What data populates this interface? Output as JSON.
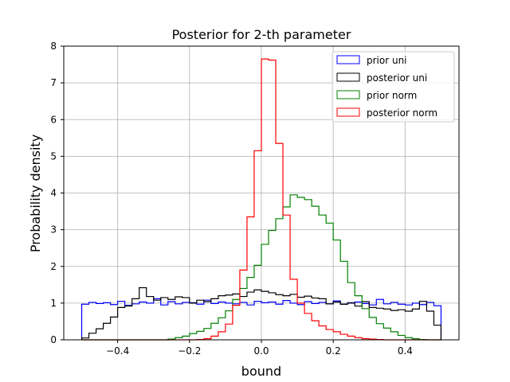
{
  "chart_data": {
    "type": "histogram-step",
    "title": "Posterior for 2-th parameter",
    "xlabel": "bound",
    "ylabel": "Probability density",
    "xlim": [
      -0.55,
      0.55
    ],
    "ylim": [
      0,
      8
    ],
    "xticks": [
      -0.4,
      -0.2,
      0.0,
      0.2,
      0.4
    ],
    "xtick_labels": [
      "−0.4",
      "−0.2",
      "0.0",
      "0.2",
      "0.4"
    ],
    "yticks": [
      0,
      1,
      2,
      3,
      4,
      5,
      6,
      7,
      8
    ],
    "ytick_labels": [
      "0",
      "1",
      "2",
      "3",
      "4",
      "5",
      "6",
      "7",
      "8"
    ],
    "grid": true,
    "legend_position": "top-right",
    "bin_start": -0.5,
    "bin_width": 0.02,
    "series": [
      {
        "name": "prior uni",
        "color": "#0000ff",
        "values": [
          0.97,
          1.02,
          0.99,
          1.01,
          0.96,
          1.05,
          0.94,
          0.98,
          1.03,
          1.0,
          1.12,
          0.95,
          1.04,
          0.98,
          1.02,
          1.01,
          0.97,
          1.08,
          0.99,
          1.03,
          1.0,
          0.98,
          1.02,
          0.95,
          1.05,
          1.01,
          1.03,
          0.97,
          1.07,
          1.0,
          0.96,
          1.04,
          0.99,
          1.02,
          0.98,
          1.06,
          0.97,
          1.01,
          1.03,
          0.99,
          0.95,
          1.1,
          0.98,
          1.02,
          0.97,
          0.95,
          1.0,
          0.96,
          1.02,
          0.93
        ]
      },
      {
        "name": "posterior uni",
        "color": "#000000",
        "values": [
          0.05,
          0.18,
          0.3,
          0.45,
          0.62,
          0.88,
          0.92,
          1.12,
          1.42,
          1.18,
          1.08,
          1.15,
          1.1,
          1.17,
          1.15,
          1.0,
          1.08,
          1.04,
          1.12,
          1.2,
          1.22,
          1.25,
          1.18,
          1.3,
          1.36,
          1.32,
          1.28,
          1.23,
          1.2,
          1.24,
          1.16,
          1.19,
          1.14,
          1.12,
          0.98,
          1.03,
          0.97,
          1.0,
          0.92,
          1.04,
          0.88,
          0.86,
          0.84,
          0.8,
          0.82,
          0.78,
          0.84,
          1.05,
          0.78,
          0.4
        ]
      },
      {
        "name": "prior norm",
        "color": "#008000",
        "values": [
          0,
          0,
          0,
          0,
          0,
          0,
          0,
          0,
          0,
          0,
          0,
          0,
          0.02,
          0.06,
          0.1,
          0.17,
          0.23,
          0.31,
          0.45,
          0.6,
          0.79,
          1.1,
          1.4,
          1.7,
          2.03,
          2.6,
          2.98,
          3.3,
          3.62,
          3.95,
          3.88,
          3.82,
          3.64,
          3.4,
          3.18,
          2.72,
          2.14,
          1.56,
          1.2,
          0.85,
          0.61,
          0.44,
          0.32,
          0.22,
          0.12,
          0.06,
          0.03,
          0.01,
          0,
          0
        ]
      },
      {
        "name": "posterior norm",
        "color": "#ff0000",
        "values": [
          0,
          0,
          0,
          0,
          0,
          0,
          0,
          0,
          0,
          0,
          0,
          0,
          0,
          0,
          0,
          0,
          0.01,
          0.03,
          0.1,
          0.22,
          0.43,
          0.94,
          1.9,
          3.35,
          5.15,
          7.65,
          7.62,
          5.35,
          3.4,
          1.65,
          1.0,
          0.72,
          0.52,
          0.38,
          0.28,
          0.22,
          0.15,
          0.1,
          0.06,
          0.03,
          0.02,
          0.01,
          0,
          0,
          0,
          0,
          0,
          0,
          0,
          0
        ]
      }
    ]
  }
}
